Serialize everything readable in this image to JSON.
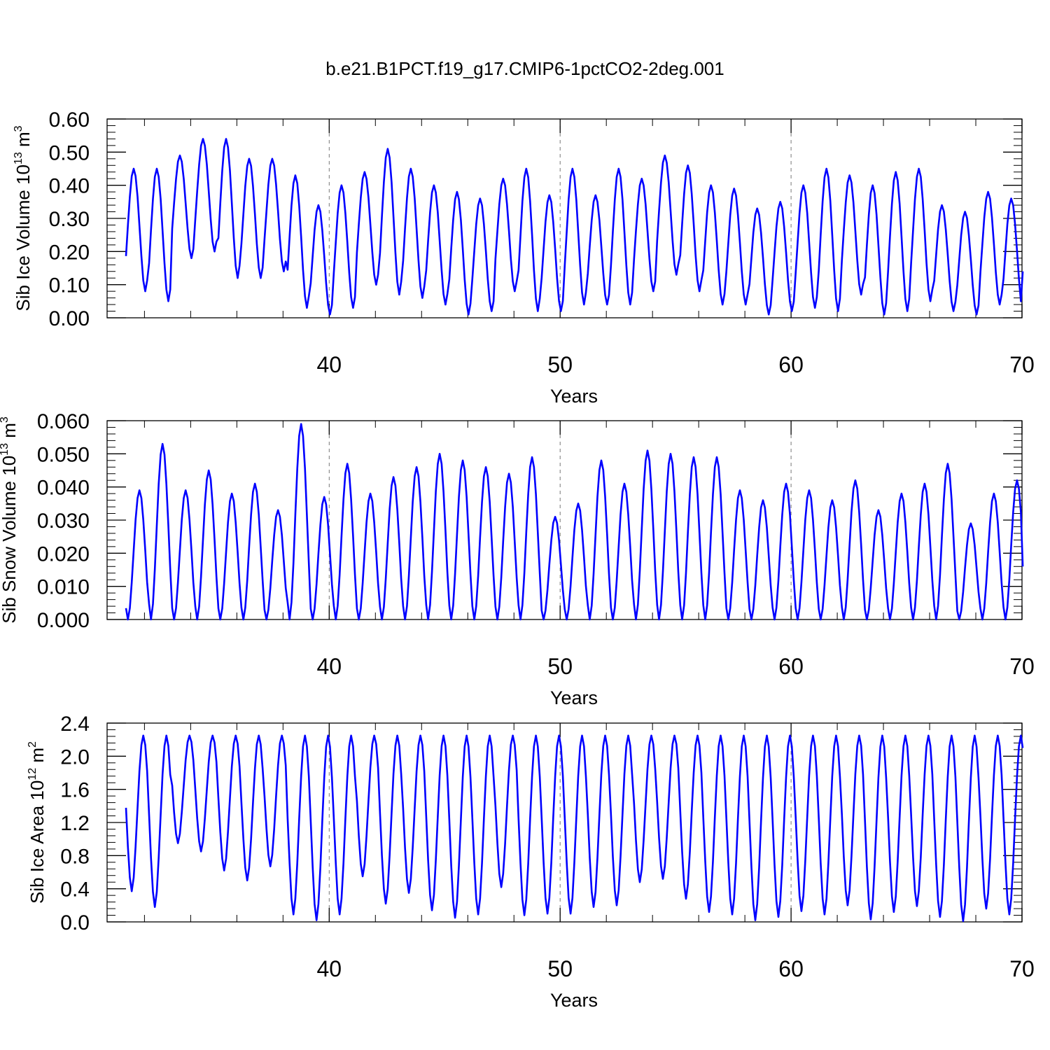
{
  "title": "b.e21.B1PCT.f19_g17.CMIP6-1pctCO2-2deg.001",
  "line_color": "#0000ff",
  "chart_data": [
    {
      "type": "line",
      "xlabel": "Years",
      "ylabel_main": "Sib Ice Volume 10",
      "ylabel_exp": "13",
      "ylabel_unit": " m",
      "ylabel_unit_exp": "3",
      "xlim": [
        31.2,
        70
      ],
      "ylim": [
        0,
        0.6
      ],
      "x_ticks": [
        "40",
        "50",
        "60",
        "70"
      ],
      "y_ticks": [
        "0.00",
        "0.10",
        "0.20",
        "0.30",
        "0.40",
        "0.50",
        "0.60"
      ],
      "seasonal_cycle": {
        "start_year": 31.2,
        "end_year": 70,
        "phase_start": 5
      },
      "annual_max": [
        0.45,
        0.45,
        0.49,
        0.54,
        0.54,
        0.48,
        0.48,
        0.43,
        0.34,
        0.4,
        0.44,
        0.51,
        0.45,
        0.4,
        0.38,
        0.36,
        0.42,
        0.45,
        0.37,
        0.45,
        0.37,
        0.45,
        0.42,
        0.49,
        0.46,
        0.4,
        0.39,
        0.33,
        0.35,
        0.4,
        0.45,
        0.43,
        0.4,
        0.44,
        0.45,
        0.34,
        0.32,
        0.38,
        0.36,
        0.38
      ],
      "annual_min": [
        0.08,
        0.05,
        0.18,
        0.2,
        0.12,
        0.12,
        0.14,
        0.03,
        0.01,
        0.03,
        0.1,
        0.07,
        0.06,
        0.04,
        0.01,
        0.02,
        0.08,
        0.02,
        0.02,
        0.04,
        0.04,
        0.04,
        0.08,
        0.13,
        0.08,
        0.04,
        0.04,
        0.01,
        0.02,
        0.03,
        0.02,
        0.07,
        0.01,
        0.02,
        0.05,
        0.02,
        0.01,
        0.04,
        0.02,
        0.03
      ],
      "end_value": 0.14
    },
    {
      "type": "line",
      "xlabel": "Years",
      "ylabel_main": "Sib Snow Volume 10",
      "ylabel_exp": "13",
      "ylabel_unit": " m",
      "ylabel_unit_exp": "3",
      "xlim": [
        31.2,
        70
      ],
      "ylim": [
        0,
        0.06
      ],
      "x_ticks": [
        "40",
        "50",
        "60",
        "70"
      ],
      "y_ticks": [
        "0.000",
        "0.010",
        "0.020",
        "0.030",
        "0.040",
        "0.050",
        "0.060"
      ],
      "seasonal_cycle": {
        "start_year": 31.2,
        "end_year": 70,
        "phase_start": 2
      },
      "annual_max": [
        0.039,
        0.053,
        0.039,
        0.045,
        0.038,
        0.041,
        0.033,
        0.059,
        0.037,
        0.047,
        0.038,
        0.043,
        0.046,
        0.05,
        0.048,
        0.046,
        0.044,
        0.049,
        0.031,
        0.035,
        0.048,
        0.041,
        0.051,
        0.05,
        0.049,
        0.049,
        0.039,
        0.036,
        0.041,
        0.039,
        0.036,
        0.042,
        0.033,
        0.038,
        0.041,
        0.047,
        0.029,
        0.038,
        0.042,
        0.038
      ],
      "annual_min": [
        0.0,
        0.0,
        0.0,
        0.0,
        0.0,
        0.0,
        0.0,
        0.0,
        0.0,
        0.0,
        0.0,
        0.0,
        0.0,
        0.0,
        0.0,
        0.0,
        0.0,
        0.0,
        0.0,
        0.0,
        0.0,
        0.0,
        0.0,
        0.0,
        0.0,
        0.0,
        0.0,
        0.0,
        0.0,
        0.0,
        0.0,
        0.0,
        0.0,
        0.0,
        0.0,
        0.0,
        0.0,
        0.0,
        0.0,
        0.0
      ],
      "end_value": 0.016
    },
    {
      "type": "line",
      "xlabel": "Years",
      "ylabel_main": "Sib Ice Area 10",
      "ylabel_exp": "12",
      "ylabel_unit": " m",
      "ylabel_unit_exp": "2",
      "xlim": [
        31.2,
        70
      ],
      "ylim": [
        0,
        2.4
      ],
      "x_ticks": [
        "40",
        "50",
        "60",
        "70"
      ],
      "y_ticks": [
        "0.0",
        "0.4",
        "0.8",
        "1.2",
        "1.6",
        "2.0",
        "2.4"
      ],
      "seasonal_cycle": {
        "start_year": 31.2,
        "end_year": 70,
        "phase_start": 0
      },
      "annual_max": [
        2.25,
        2.25,
        2.25,
        2.25,
        2.25,
        2.25,
        2.25,
        2.25,
        2.25,
        2.25,
        2.25,
        2.25,
        2.25,
        2.25,
        2.25,
        2.25,
        2.25,
        2.25,
        2.25,
        2.25,
        2.25,
        2.25,
        2.25,
        2.25,
        2.25,
        2.25,
        2.25,
        2.25,
        2.25,
        2.25,
        2.25,
        2.25,
        2.25,
        2.25,
        2.25,
        2.25,
        2.25,
        2.25,
        2.25,
        2.25
      ],
      "annual_min": [
        0.37,
        0.18,
        0.95,
        0.85,
        0.62,
        0.5,
        0.67,
        0.09,
        0.02,
        0.09,
        0.55,
        0.22,
        0.35,
        0.14,
        0.05,
        0.09,
        0.42,
        0.08,
        0.1,
        0.1,
        0.18,
        0.2,
        0.48,
        0.52,
        0.28,
        0.12,
        0.09,
        0.02,
        0.06,
        0.13,
        0.09,
        0.2,
        0.03,
        0.12,
        0.19,
        0.06,
        0.01,
        0.16,
        0.09,
        0.1
      ],
      "end_value": 2.1
    }
  ]
}
